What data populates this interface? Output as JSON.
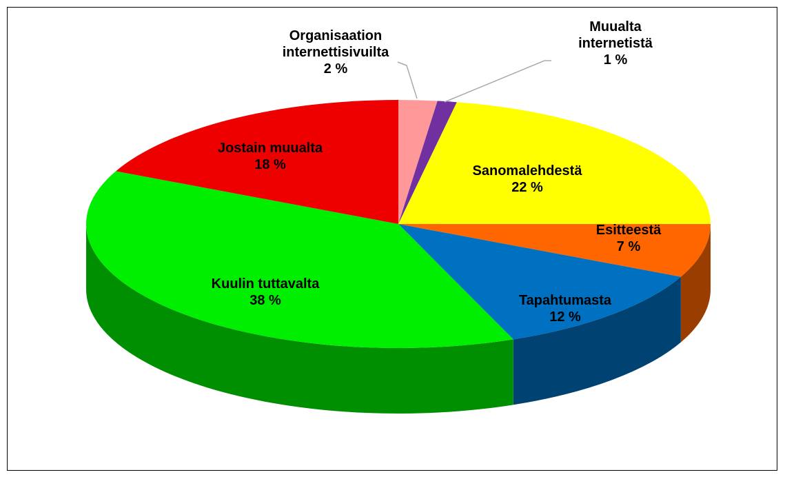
{
  "chart_data": {
    "type": "pie",
    "categories": [
      "Organisaation internettisivuilta",
      "Muualta internetistä",
      "Sanomalehdestä",
      "Esitteestä",
      "Tapahtumasta",
      "Kuulin tuttavalta",
      "Jostain muualta"
    ],
    "values": [
      2,
      1,
      22,
      7,
      12,
      38,
      18
    ],
    "value_labels": [
      "2 %",
      "1 %",
      "22 %",
      "7 %",
      "12 %",
      "38 %",
      "18 %"
    ],
    "colors": [
      "#ff9999",
      "#7030a0",
      "#ffff00",
      "#ff6600",
      "#0070c0",
      "#00ee00",
      "#ee0000"
    ]
  }
}
